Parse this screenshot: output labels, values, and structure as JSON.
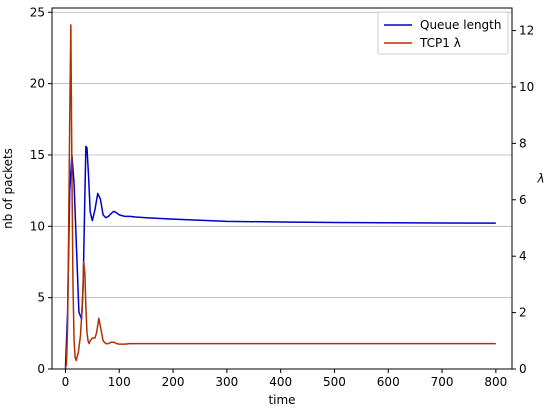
{
  "chart_data": {
    "type": "line",
    "xlabel": "time",
    "ylabel_left": "nb of packets",
    "ylabel_right": "λ",
    "xlim": [
      -25,
      830
    ],
    "ylim_left": [
      0,
      25.3
    ],
    "ylim_right": [
      0,
      12.8
    ],
    "xticks": [
      0,
      100,
      200,
      300,
      400,
      500,
      600,
      700,
      800
    ],
    "yticks_left": [
      0,
      5,
      10,
      15,
      20,
      25
    ],
    "yticks_right": [
      0,
      2,
      4,
      6,
      8,
      10,
      12
    ],
    "grid": "horizontal",
    "legend_position": "top-right",
    "series": [
      {
        "name": "Queue length",
        "axis": "left",
        "color": "#0000cc",
        "x": [
          0,
          4,
          8,
          12,
          16,
          20,
          25,
          30,
          33,
          36,
          38,
          40,
          43,
          46,
          50,
          55,
          60,
          65,
          70,
          75,
          80,
          85,
          90,
          95,
          100,
          105,
          110,
          115,
          120,
          130,
          150,
          200,
          300,
          400,
          500,
          600,
          700,
          800
        ],
        "y": [
          0,
          4,
          12.5,
          15,
          13,
          9,
          4,
          3.5,
          6,
          12,
          15.6,
          15.5,
          13.5,
          11,
          10.4,
          11.2,
          12.3,
          11.9,
          10.8,
          10.6,
          10.7,
          10.9,
          11.05,
          10.95,
          10.8,
          10.75,
          10.7,
          10.7,
          10.7,
          10.65,
          10.6,
          10.5,
          10.35,
          10.3,
          10.27,
          10.25,
          10.23,
          10.22
        ]
      },
      {
        "name": "TCP1 λ",
        "axis": "right",
        "color": "#b03000",
        "x": [
          0,
          2,
          4,
          6,
          8,
          10,
          12,
          14,
          16,
          18,
          20,
          24,
          28,
          32,
          34,
          36,
          38,
          40,
          42,
          44,
          46,
          50,
          55,
          58,
          62,
          66,
          70,
          75,
          80,
          85,
          90,
          95,
          100,
          110,
          120,
          140,
          200,
          400,
          600,
          800
        ],
        "y": [
          0,
          0.2,
          1.5,
          5,
          9,
          12.2,
          7,
          3,
          1,
          0.4,
          0.3,
          0.6,
          1.2,
          2.5,
          3.8,
          3.4,
          2.2,
          1.3,
          1.0,
          0.9,
          1.0,
          1.1,
          1.1,
          1.3,
          1.8,
          1.4,
          1.0,
          0.9,
          0.9,
          0.95,
          0.95,
          0.9,
          0.88,
          0.88,
          0.9,
          0.9,
          0.9,
          0.9,
          0.9,
          0.9
        ]
      }
    ]
  }
}
